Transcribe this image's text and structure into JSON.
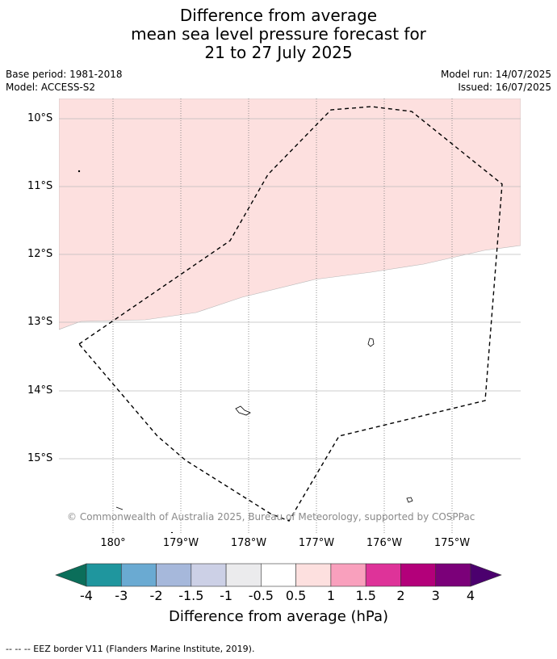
{
  "title": {
    "line1": "Difference from average",
    "line2": "mean sea level pressure forecast for",
    "line3": "21 to 27 July 2025"
  },
  "meta": {
    "base_period": "Base period: 1981-2018",
    "model": "Model: ACCESS-S2",
    "model_run": "Model run: 14/07/2025",
    "issued": "Issued: 16/07/2025"
  },
  "map": {
    "latitudes": [
      "10°S",
      "11°S",
      "12°S",
      "13°S",
      "14°S",
      "15°S"
    ],
    "longitudes": [
      "180°",
      "179°W",
      "178°W",
      "177°W",
      "176°W",
      "175°W"
    ],
    "anomaly_fill_color": "#fde0df",
    "anomaly_category": "0.5 to 1",
    "copyright": "© Commonwealth of Australia 2025, Bureau of Meteorology, supported by COSPPac"
  },
  "colorbar": {
    "ticks": [
      "-4",
      "-3",
      "-2",
      "-1.5",
      "-1",
      "-0.5",
      "0.5",
      "1",
      "1.5",
      "2",
      "3",
      "4"
    ],
    "colors": [
      "#0b6e5a",
      "#1f969e",
      "#6aaad2",
      "#a6b8db",
      "#ccd0e6",
      "#ebebed",
      "#ffffff",
      "#fde0df",
      "#f9a0bd",
      "#de3399",
      "#b3007a",
      "#7b0079",
      "#4b006e"
    ],
    "label": "Difference from average (hPa)"
  },
  "footer": {
    "legend": "--  --  -- EEZ border V11 (Flanders Marine Institute, 2019)."
  }
}
